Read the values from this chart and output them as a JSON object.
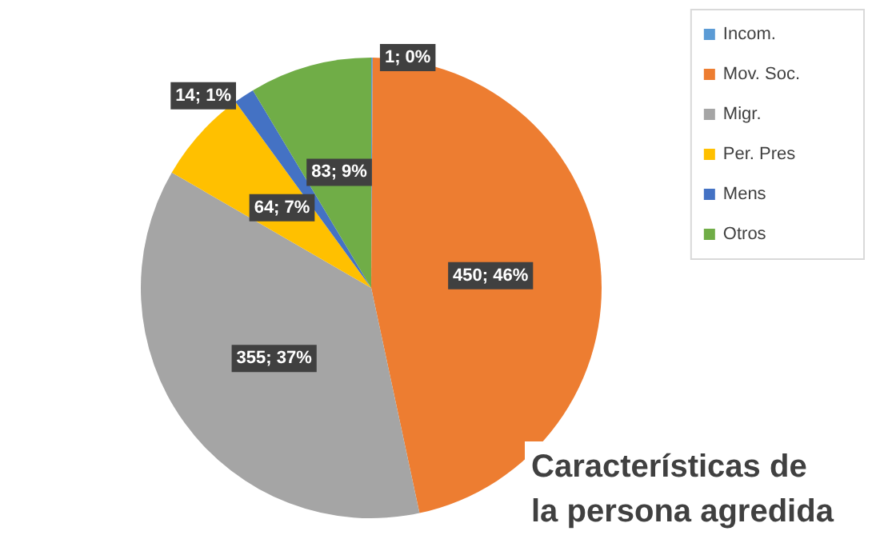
{
  "chart_data": {
    "type": "pie",
    "title": "Características de la persona agredida",
    "categories": [
      "Incom.",
      "Mov. Soc.",
      "Migr.",
      "Per. Pres",
      "Mens",
      "Otros"
    ],
    "values": [
      1,
      450,
      355,
      64,
      14,
      83
    ],
    "value_labels": [
      "1; 0%",
      "450; 46%",
      "355; 37%",
      "64; 7%",
      "14; 1%",
      "83; 9%"
    ],
    "colors": [
      "#5b9bd5",
      "#ed7d31",
      "#a5a5a5",
      "#ffc000",
      "#4472c4",
      "#70ad47"
    ],
    "legend": "top right"
  }
}
